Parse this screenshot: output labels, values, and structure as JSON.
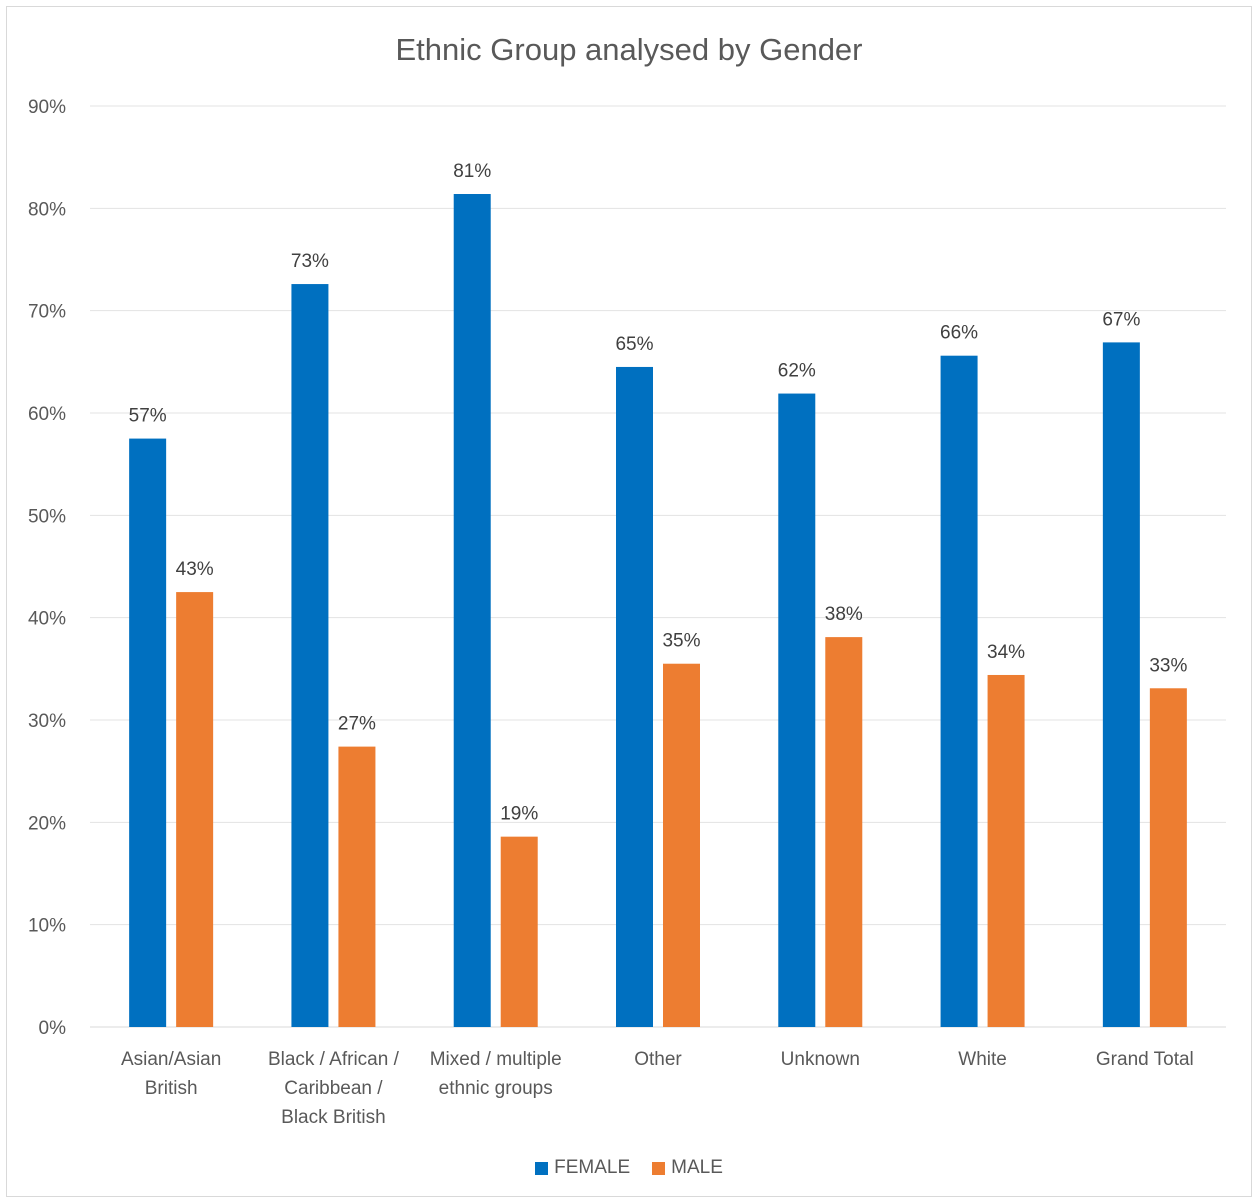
{
  "chart_data": {
    "type": "bar",
    "title": "Ethnic Group analysed by Gender",
    "xlabel": "",
    "ylabel": "",
    "ylim": [
      0,
      90
    ],
    "y_ticks": [
      "0%",
      "10%",
      "20%",
      "30%",
      "40%",
      "50%",
      "60%",
      "70%",
      "80%",
      "90%"
    ],
    "grid": true,
    "legend_position": "bottom",
    "categories": [
      [
        "Asian/Asian",
        "British"
      ],
      [
        "Black / African /",
        "Caribbean /",
        "Black British"
      ],
      [
        "Mixed / multiple",
        "ethnic groups"
      ],
      [
        "Other"
      ],
      [
        "Unknown"
      ],
      [
        "White"
      ],
      [
        "Grand Total"
      ]
    ],
    "series": [
      {
        "name": "FEMALE",
        "color": "#0070c0",
        "values": [
          57.5,
          72.6,
          81.4,
          64.5,
          61.9,
          65.6,
          66.9
        ],
        "labels": [
          "57%",
          "73%",
          "81%",
          "65%",
          "62%",
          "66%",
          "67%"
        ]
      },
      {
        "name": "MALE",
        "color": "#ed7d31",
        "values": [
          42.5,
          27.4,
          18.6,
          35.5,
          38.1,
          34.4,
          33.1
        ],
        "labels": [
          "43%",
          "27%",
          "19%",
          "35%",
          "38%",
          "34%",
          "33%"
        ]
      }
    ]
  }
}
